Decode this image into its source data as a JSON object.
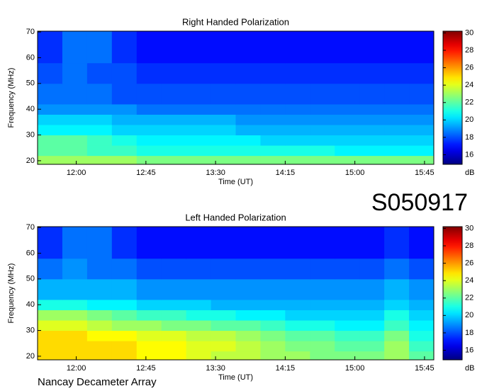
{
  "label": "S050917",
  "footer": "Nancay Decameter Array",
  "chart_data": [
    {
      "type": "heatmap",
      "title": "Right Handed Polarization",
      "x_label": "Time (UT)",
      "y_label": "Frequency (MHz)",
      "colorbar_label": "dB",
      "colormap": "jet",
      "xlim": [
        695,
        951
      ],
      "ylim": [
        18.6,
        70.3
      ],
      "clim": [
        14.9,
        30.2
      ],
      "xticks": [
        {
          "value": 720,
          "label": "12:00"
        },
        {
          "value": 765,
          "label": "12:45"
        },
        {
          "value": 810,
          "label": "13:30"
        },
        {
          "value": 855,
          "label": "14:15"
        },
        {
          "value": 900,
          "label": "15:00"
        },
        {
          "value": 945,
          "label": "15:45"
        }
      ],
      "yticks": [
        20,
        30,
        40,
        50,
        60,
        70
      ],
      "cticks": [
        16,
        18,
        20,
        22,
        24,
        26,
        28,
        30
      ],
      "x_bins": [
        695,
        711,
        727,
        743,
        759,
        775,
        791,
        807,
        823,
        839,
        855,
        871,
        887,
        903,
        919,
        935,
        951
      ],
      "y_bins": [
        18.6,
        22,
        26,
        30,
        34,
        38,
        42,
        50,
        58,
        70.3
      ],
      "values": [
        [
          23,
          23,
          23,
          23,
          22.5,
          22.5,
          22.5,
          22.5,
          22.5,
          22.5,
          22.5,
          22.5,
          22.5,
          22.5,
          22.5,
          22.5
        ],
        [
          22,
          22,
          21.5,
          21.5,
          21,
          21,
          21,
          21,
          21,
          21,
          21,
          21,
          20.5,
          20.5,
          20.5,
          20.5
        ],
        [
          22,
          22,
          21.5,
          21,
          20.5,
          20.5,
          20.5,
          20.5,
          20.5,
          20,
          20,
          20,
          20,
          20,
          20,
          20
        ],
        [
          20.5,
          20.5,
          20.5,
          20,
          20,
          20,
          20,
          20,
          19.5,
          19.5,
          19.5,
          19.5,
          19.5,
          19.5,
          19.5,
          19.5
        ],
        [
          20,
          20,
          20,
          19.5,
          19.5,
          19.5,
          19.5,
          19.5,
          19,
          19,
          19,
          19,
          19,
          19,
          19,
          19
        ],
        [
          19,
          19,
          19,
          19,
          18.5,
          18.5,
          18.5,
          18.5,
          18.5,
          18.5,
          18.5,
          18.5,
          18.5,
          18.5,
          18.5,
          18.5
        ],
        [
          18.5,
          18.5,
          18.5,
          18,
          18,
          18,
          18,
          18,
          18,
          18,
          18,
          18,
          18,
          18,
          18,
          18
        ],
        [
          18,
          18.5,
          18,
          18,
          17.5,
          17.5,
          17.5,
          17.5,
          17.5,
          17.5,
          17.5,
          17.5,
          17.5,
          17.5,
          17.5,
          17.5
        ],
        [
          17.5,
          18.5,
          18.5,
          17.5,
          17,
          17,
          17,
          17,
          17,
          17,
          17,
          17,
          17,
          17,
          17,
          17
        ]
      ]
    },
    {
      "type": "heatmap",
      "title": "Left Handed Polarization",
      "x_label": "Time (UT)",
      "y_label": "Frequency (MHz)",
      "colorbar_label": "dB",
      "colormap": "jet",
      "xlim": [
        695,
        951
      ],
      "ylim": [
        18.6,
        70.3
      ],
      "clim": [
        14.9,
        30.2
      ],
      "xticks": [
        {
          "value": 720,
          "label": "12:00"
        },
        {
          "value": 765,
          "label": "12:45"
        },
        {
          "value": 810,
          "label": "13:30"
        },
        {
          "value": 855,
          "label": "14:15"
        },
        {
          "value": 900,
          "label": "15:00"
        },
        {
          "value": 945,
          "label": "15:45"
        }
      ],
      "yticks": [
        20,
        30,
        40,
        50,
        60,
        70
      ],
      "cticks": [
        16,
        18,
        20,
        22,
        24,
        26,
        28,
        30
      ],
      "x_bins": [
        695,
        711,
        727,
        743,
        759,
        775,
        791,
        807,
        823,
        839,
        855,
        871,
        887,
        903,
        919,
        935,
        951
      ],
      "y_bins": [
        18.6,
        22,
        26,
        30,
        34,
        38,
        42,
        50,
        58,
        70.3
      ],
      "values": [
        [
          25,
          25,
          25,
          25,
          24.5,
          24.5,
          24,
          23.5,
          23.5,
          23,
          23,
          22.5,
          22.5,
          22.5,
          23,
          22
        ],
        [
          25,
          25,
          25,
          25,
          24.5,
          24.5,
          24,
          24,
          23.5,
          23,
          22.5,
          22.5,
          22,
          22,
          23,
          21.5
        ],
        [
          25,
          25,
          24.5,
          24.5,
          24,
          24,
          23.5,
          23.5,
          23,
          22.5,
          22,
          22,
          21.5,
          21.5,
          22.5,
          21
        ],
        [
          24,
          24,
          23.5,
          23,
          23,
          22.5,
          22.5,
          22,
          22,
          21.5,
          21,
          21,
          20.5,
          20.5,
          21.5,
          20.5
        ],
        [
          23,
          23,
          22.5,
          22,
          21.5,
          21.5,
          21,
          21,
          20.5,
          20.5,
          20,
          20,
          20,
          20,
          21,
          20
        ],
        [
          21,
          21,
          20.5,
          20.5,
          20,
          20,
          20,
          19.5,
          19.5,
          19.5,
          19.5,
          19.5,
          19.5,
          19.5,
          20,
          19.5
        ],
        [
          19.5,
          19.5,
          19.5,
          19.5,
          19,
          19,
          19,
          19,
          19,
          19,
          19,
          19,
          19,
          19,
          19.5,
          19
        ],
        [
          18.5,
          19,
          18.5,
          18.5,
          18,
          18,
          18,
          18,
          18,
          18,
          18,
          18,
          18,
          18,
          18.5,
          18
        ],
        [
          17.5,
          18.5,
          18.5,
          17.5,
          17,
          17,
          17,
          17,
          17,
          17,
          17,
          17,
          17,
          17,
          17.5,
          17
        ]
      ]
    }
  ]
}
